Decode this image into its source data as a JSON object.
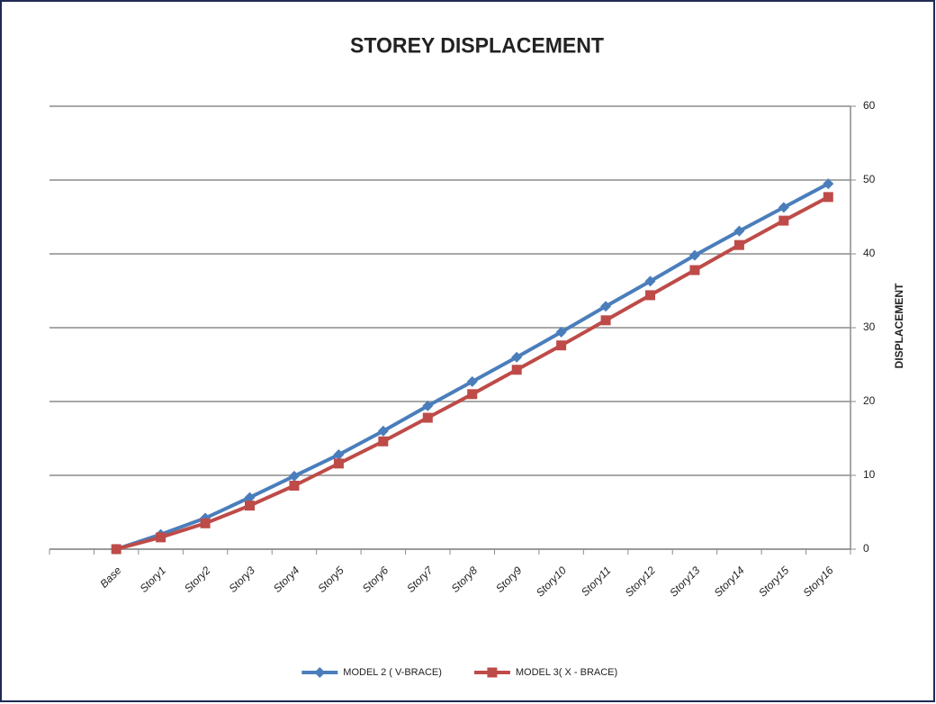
{
  "chart_data": {
    "type": "line",
    "title": "STOREY DISPLACEMENT",
    "y_label": "DISPLACEMENT",
    "categories": [
      null,
      "Base",
      "Story1",
      "Story2",
      "Story3",
      "Story4",
      "Story5",
      "Story6",
      "Story7",
      "Story8",
      "Story9",
      "Story10",
      "Story11",
      "Story12",
      "Story13",
      "Story14",
      "Story15",
      "Story16"
    ],
    "series": [
      {
        "name": "MODEL 2 ( V-BRACE)",
        "color": "#4a7ebb",
        "marker": "diamond",
        "values": [
          null,
          0,
          2.0,
          4.2,
          7.0,
          9.9,
          12.8,
          16.0,
          19.4,
          22.7,
          26.0,
          29.4,
          32.9,
          36.3,
          39.8,
          43.1,
          46.3,
          49.5
        ]
      },
      {
        "name": "MODEL 3( X - BRACE)",
        "color": "#be4b48",
        "marker": "square",
        "values": [
          null,
          0,
          1.6,
          3.5,
          5.9,
          8.6,
          11.6,
          14.6,
          17.8,
          21.0,
          24.3,
          27.6,
          31.0,
          34.4,
          37.8,
          41.2,
          44.5,
          47.7
        ]
      }
    ],
    "ylim": [
      0,
      60
    ],
    "yticks": [
      0,
      10,
      20,
      30,
      40,
      50,
      60
    ],
    "grid": true,
    "y_axis_side": "right",
    "legend": "bottom"
  }
}
